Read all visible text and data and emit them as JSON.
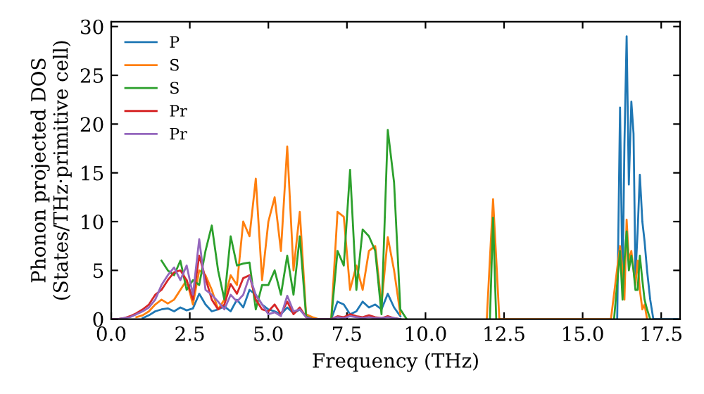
{
  "chart_data": {
    "type": "line",
    "xlabel": "Frequency (THz)",
    "ylabel": "Phonon projected DOS\n(States/THz·primitive cell)",
    "xlim": [
      0,
      18.1
    ],
    "ylim": [
      0,
      30.5
    ],
    "xticks": [
      {
        "value": 0,
        "label": "0.0"
      },
      {
        "value": 2.5,
        "label": "2.5"
      },
      {
        "value": 5,
        "label": "5.0"
      },
      {
        "value": 7.5,
        "label": "7.5"
      },
      {
        "value": 10,
        "label": "10.0"
      },
      {
        "value": 12.5,
        "label": "12.5"
      },
      {
        "value": 15,
        "label": "15.0"
      },
      {
        "value": 17.5,
        "label": "17.5"
      }
    ],
    "yticks": [
      0,
      5,
      10,
      15,
      20,
      25,
      30
    ],
    "grid": false,
    "legend": "top left",
    "marker": "none",
    "line_style": "solid",
    "x": [
      0,
      0.2,
      0.4,
      0.6,
      0.8,
      1.0,
      1.2,
      1.4,
      1.6,
      1.8,
      2.0,
      2.2,
      2.4,
      2.6,
      2.8,
      3.0,
      3.2,
      3.4,
      3.6,
      3.8,
      4.0,
      4.2,
      4.4,
      4.6,
      4.8,
      5.0,
      5.2,
      5.4,
      5.6,
      5.8,
      6.0,
      6.2,
      6.4,
      6.6,
      6.8,
      7.0,
      7.2,
      7.4,
      7.6,
      7.8,
      8.0,
      8.2,
      8.4,
      8.6,
      8.8,
      9.0,
      9.2,
      9.4,
      11.95,
      12.05,
      12.15,
      12.25,
      12.35,
      15.9,
      16.0,
      16.1,
      16.19,
      16.27,
      16.33,
      16.4,
      16.47,
      16.55,
      16.62,
      16.68,
      16.75,
      16.82,
      16.9,
      16.97,
      17.05,
      17.15,
      17.25,
      17.4,
      18.0
    ],
    "series": [
      {
        "name": "P",
        "color": "#1f77b4",
        "values": [
          null,
          null,
          null,
          null,
          null,
          0.1,
          0.4,
          0.8,
          1.0,
          1.1,
          0.8,
          1.2,
          0.9,
          1.1,
          2.6,
          1.5,
          0.8,
          1.0,
          1.3,
          0.8,
          2.0,
          1.2,
          3.0,
          2.5,
          1.5,
          1.0,
          0.8,
          0.5,
          1.2,
          0.6,
          1.0,
          0.3,
          0,
          0,
          0,
          0,
          1.8,
          1.5,
          0.5,
          0.8,
          1.8,
          1.2,
          1.5,
          1.0,
          2.6,
          1.2,
          0.3,
          null,
          null,
          null,
          null,
          null,
          null,
          null,
          null,
          0,
          21.7,
          3,
          18,
          29,
          13.8,
          22.3,
          19,
          4.5,
          9,
          14.8,
          10,
          8,
          5,
          2,
          0,
          0,
          0
        ]
      },
      {
        "name": "S",
        "color": "#ff7f0e",
        "values": [
          null,
          null,
          null,
          null,
          0.2,
          0.4,
          0.8,
          1.5,
          2,
          1.6,
          2,
          3,
          4,
          1.5,
          5,
          4.5,
          3,
          1,
          2,
          4.5,
          3.5,
          10,
          8.5,
          14.4,
          4,
          10,
          12.5,
          7,
          17.7,
          5,
          11,
          0.5,
          0.2,
          0,
          0,
          0,
          11,
          10.5,
          3,
          5.5,
          3,
          7,
          7.5,
          1.5,
          8.4,
          5,
          0.5,
          null,
          0,
          6.2,
          12.3,
          6.2,
          0,
          0,
          2.6,
          5.2,
          7.5,
          5,
          2,
          10.2,
          6,
          7,
          5,
          3.5,
          6,
          3,
          1,
          1.5,
          0,
          null,
          null,
          null,
          null
        ]
      },
      {
        "name": "S",
        "color": "#2ca02c",
        "values": [
          null,
          null,
          null,
          null,
          null,
          null,
          null,
          null,
          6,
          5,
          4.5,
          6,
          3,
          4,
          3.5,
          7,
          9.6,
          5,
          2,
          8.5,
          5.5,
          5.7,
          5.8,
          1,
          3.5,
          3.5,
          5,
          2.5,
          6.5,
          2.5,
          8.5,
          0.3,
          0,
          0,
          0,
          0,
          7,
          5.5,
          15.3,
          3,
          9.2,
          8.5,
          7,
          0.5,
          19.4,
          14,
          1,
          0,
          null,
          0,
          10.4,
          0,
          null,
          null,
          0,
          3.7,
          7,
          2,
          6,
          9,
          5,
          6.5,
          5,
          3,
          3,
          6.5,
          4,
          2,
          1,
          0,
          null,
          null,
          null
        ]
      },
      {
        "name": "Pr",
        "color": "#d62728",
        "values": [
          0,
          0,
          0.1,
          0.3,
          0.6,
          1.0,
          1.5,
          2.5,
          3,
          4,
          4.8,
          5,
          4,
          2,
          6.5,
          4.2,
          2,
          1,
          1.5,
          3.6,
          2.6,
          4.2,
          4.5,
          2,
          1,
          0.8,
          1.5,
          0.5,
          1.8,
          0.5,
          1.2,
          0.2,
          0,
          0,
          0,
          0,
          0.3,
          0.2,
          0.5,
          0.3,
          0.2,
          0.4,
          0.2,
          0.1,
          0.3,
          0.1,
          0,
          null,
          null,
          null,
          null,
          null,
          null,
          null,
          null,
          null,
          null,
          null,
          null,
          null,
          null,
          null,
          null,
          null,
          null,
          null,
          null,
          null,
          null,
          null,
          null,
          null,
          null
        ]
      },
      {
        "name": "Pr",
        "color": "#9467bd",
        "values": [
          0,
          0,
          0.1,
          0.2,
          0.5,
          0.8,
          1.2,
          2,
          3.5,
          4.5,
          5.3,
          4,
          5.5,
          2.5,
          8.2,
          3,
          2.5,
          1.8,
          1,
          2.5,
          1.8,
          2.5,
          4.4,
          2.5,
          1.5,
          0.5,
          0.7,
          0.3,
          2.4,
          0.8,
          1.0,
          0.2,
          0,
          0,
          0,
          0,
          0.2,
          0.1,
          0.3,
          0.2,
          0.1,
          0.2,
          0.1,
          0.1,
          0.2,
          0.1,
          0,
          null,
          null,
          null,
          null,
          null,
          null,
          null,
          null,
          null,
          null,
          null,
          null,
          null,
          null,
          null,
          null,
          null,
          null,
          null,
          null,
          null,
          null,
          null,
          null,
          null,
          null
        ]
      }
    ]
  }
}
